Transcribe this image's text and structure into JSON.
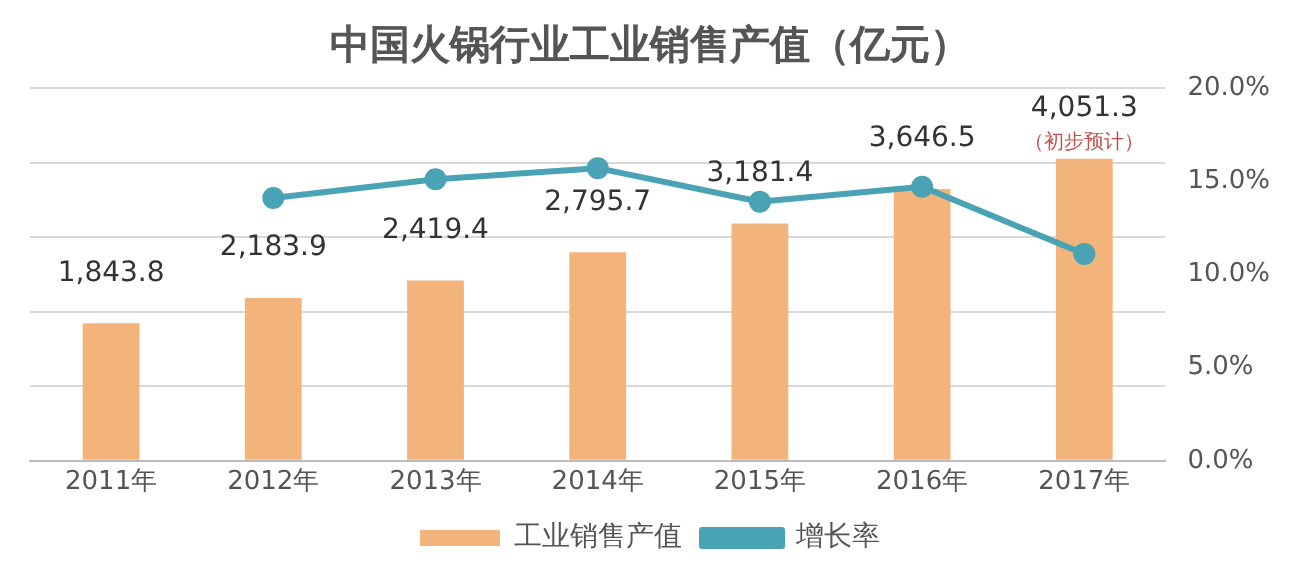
{
  "chart_data": {
    "type": "bar",
    "title": "中国火锅行业工业销售产值（亿元）",
    "categories": [
      "2011年",
      "2012年",
      "2013年",
      "2014年",
      "2015年",
      "2016年",
      "2017年"
    ],
    "series": [
      {
        "name": "工业销售产值",
        "color": "#f2b47a",
        "values": [
          1843.8,
          2183.9,
          2419.4,
          2795.7,
          3181.4,
          3646.5,
          4051.3
        ],
        "value_labels": [
          "1,843.8",
          "2,183.9",
          "2,419.4",
          "2,795.7",
          "3,181.4",
          "3,646.5",
          "4,051.3"
        ]
      },
      {
        "name": "增长率",
        "type": "line",
        "axis": "y2",
        "color": "#4aa3b5",
        "values": [
          null,
          14.1,
          15.1,
          15.7,
          13.9,
          14.7,
          11.1
        ]
      }
    ],
    "ylim": [
      0,
      5000
    ],
    "yticks": [
      {
        "value": 0,
        "label": null
      },
      {
        "value": 1000,
        "label": null
      },
      {
        "value": 2000,
        "label": null
      },
      {
        "value": 3000,
        "label": null
      },
      {
        "value": 4000,
        "label": null
      },
      {
        "value": 5000,
        "label": null
      }
    ],
    "y2lim": [
      0,
      20
    ],
    "y2ticks": [
      {
        "value": 0,
        "label": "0.0%"
      },
      {
        "value": 5,
        "label": "5.0%"
      },
      {
        "value": 10,
        "label": "10.0%"
      },
      {
        "value": 15,
        "label": "15.0%"
      },
      {
        "value": 20,
        "label": "20.0%"
      }
    ],
    "annotations": [
      {
        "text": "（初步预计）",
        "x": "2017年",
        "y": 4051.3
      }
    ],
    "grid": "y",
    "legend": "bottom",
    "marker": "circle",
    "line_style": "solid"
  }
}
